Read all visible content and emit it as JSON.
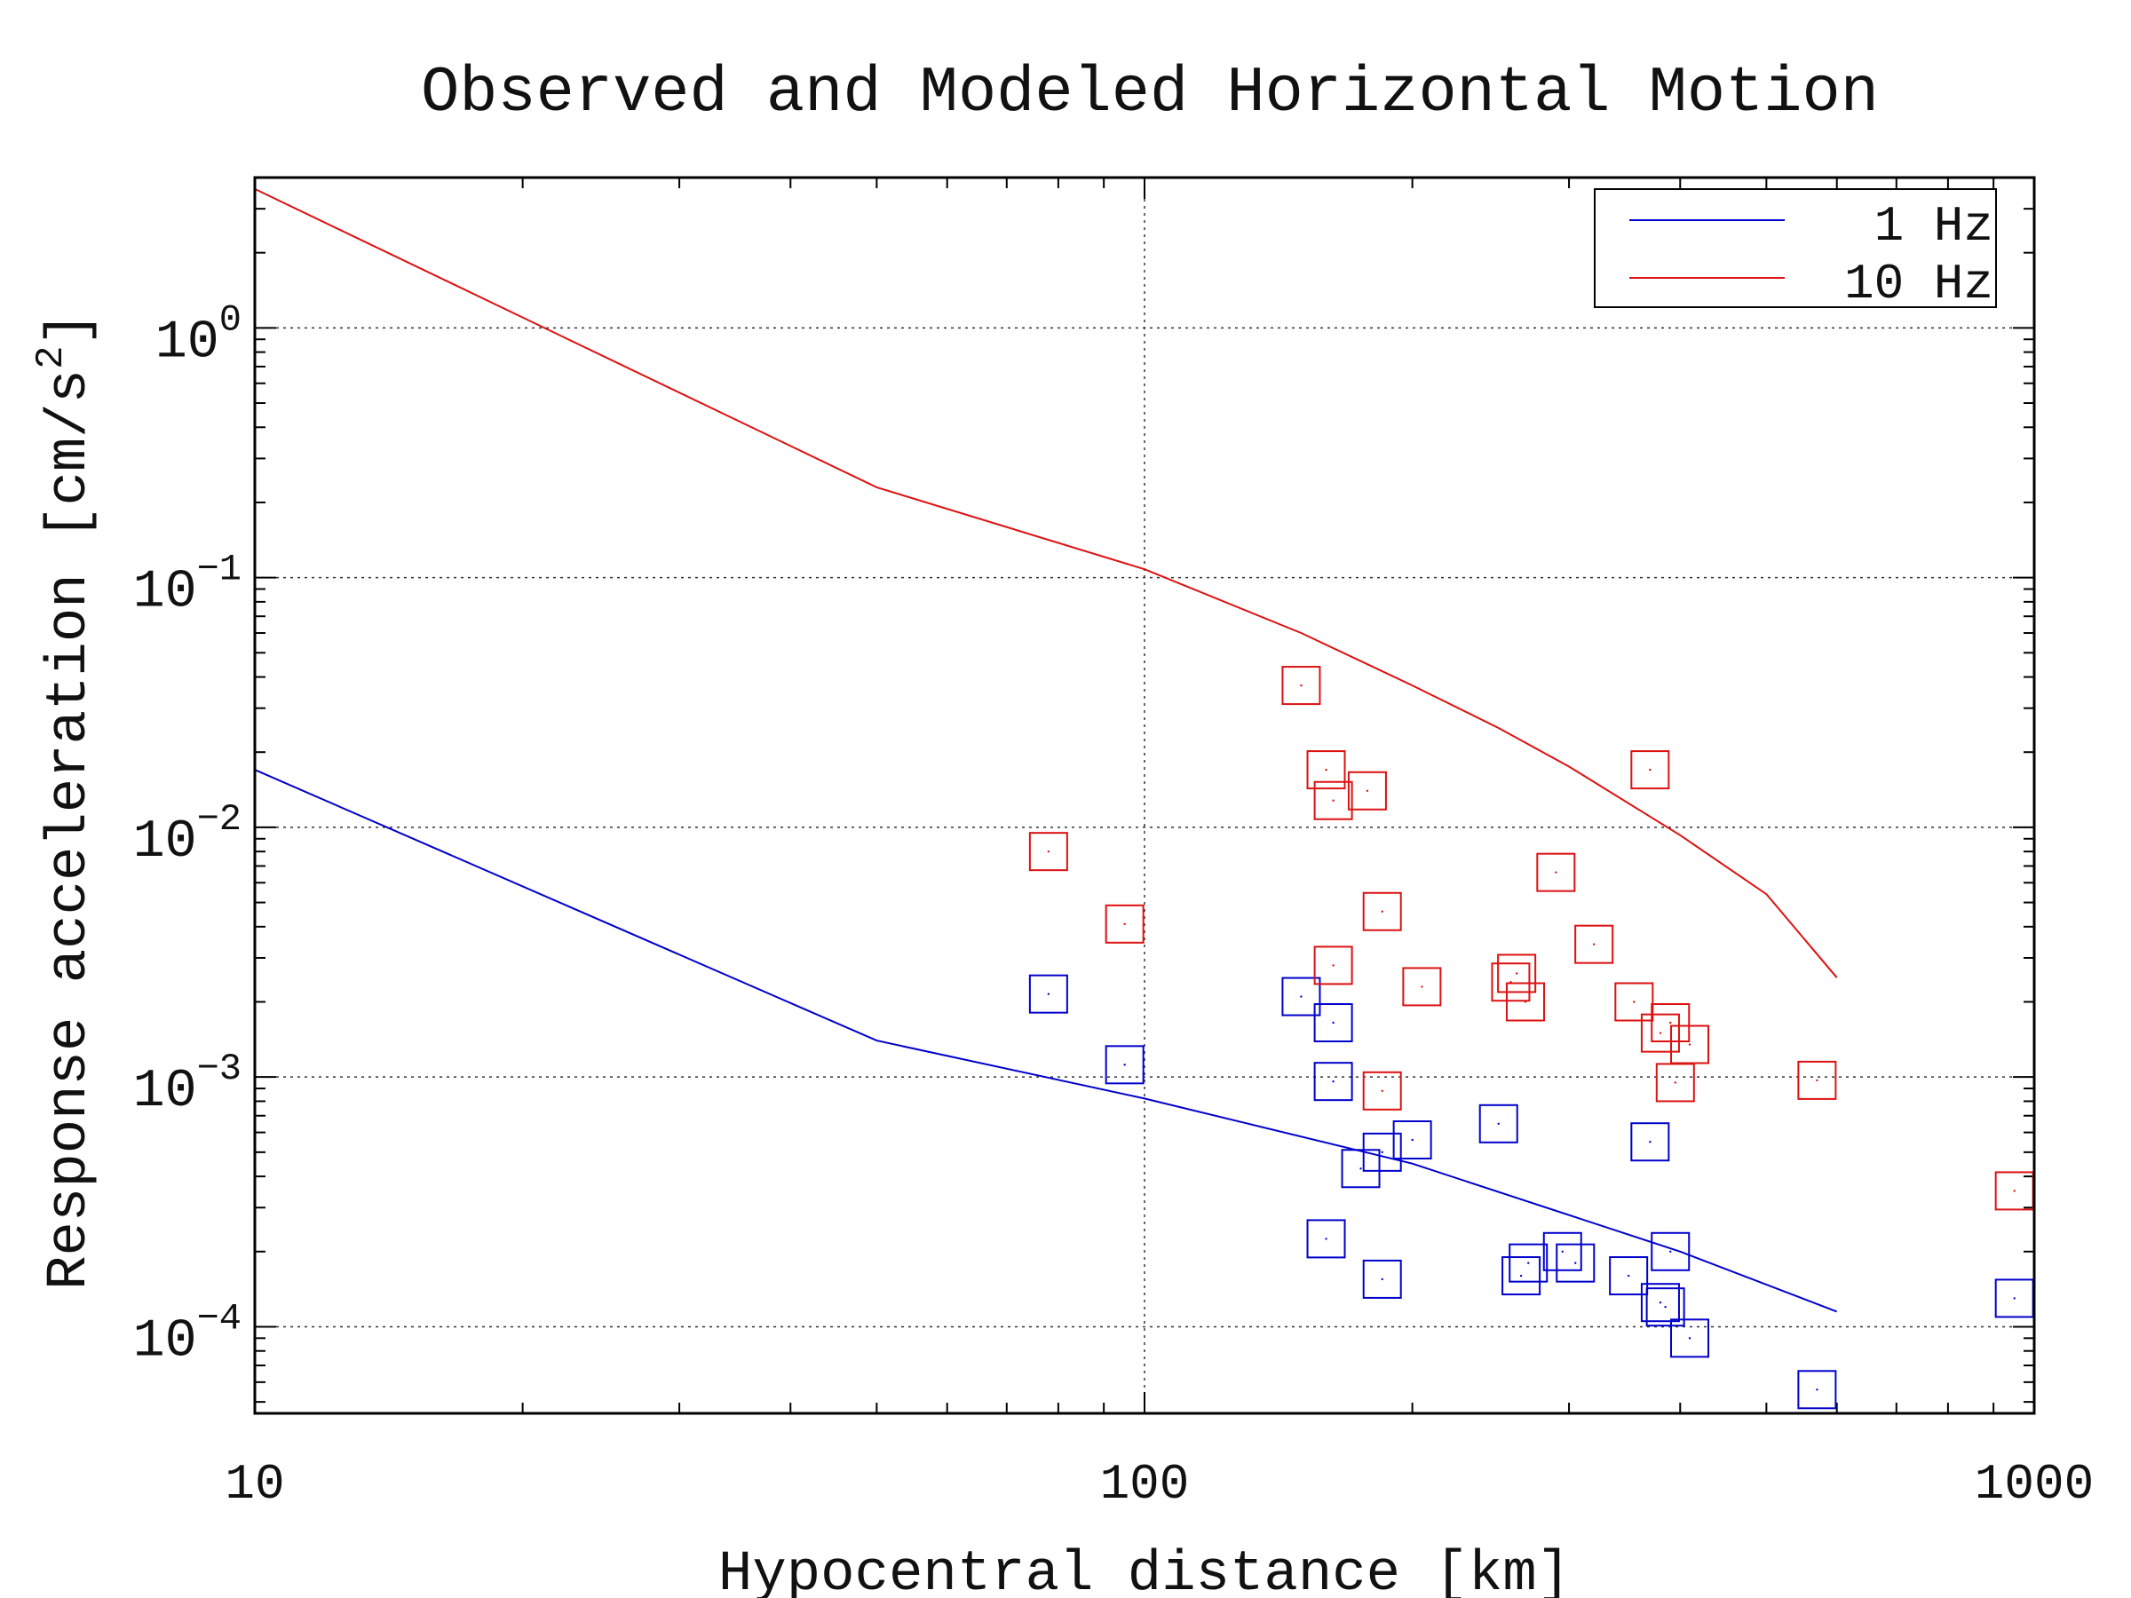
{
  "chart_data": {
    "type": "scatter",
    "title": "Observed and Modeled Horizontal Motion",
    "xlabel": "Hypocentral distance [km]",
    "ylabel": "Response acceleration [cm/s",
    "ylabel_superscript": "2",
    "ylabel_suffix": "]",
    "x_scale": "log",
    "y_scale": "log",
    "xlim": [
      10,
      1000
    ],
    "ylim": [
      4.5e-05,
      4.0
    ],
    "grid": "dotted at major ticks",
    "x_ticks": [
      {
        "value": 10,
        "label": "10"
      },
      {
        "value": 100,
        "label": "100"
      },
      {
        "value": 1000,
        "label": "1000"
      }
    ],
    "y_ticks": [
      {
        "value": 1,
        "base": "10",
        "exp": "0"
      },
      {
        "value": 0.1,
        "base": "10",
        "exp": "−1"
      },
      {
        "value": 0.01,
        "base": "10",
        "exp": "−2"
      },
      {
        "value": 0.001,
        "base": "10",
        "exp": "−3"
      },
      {
        "value": 0.0001,
        "base": "10",
        "exp": "−4"
      }
    ],
    "legend_position": "top-right",
    "series": [
      {
        "name": "1 Hz",
        "color": "#0000cc",
        "line": [
          [
            10,
            0.017
          ],
          [
            50,
            0.0014
          ],
          [
            100,
            0.00082
          ],
          [
            200,
            0.00045
          ],
          [
            400,
            0.0002
          ],
          [
            600,
            0.000115
          ]
        ],
        "points": [
          [
            78,
            0.00215
          ],
          [
            95,
            0.00112
          ],
          [
            150,
            0.0021
          ],
          [
            160,
            0.000225
          ],
          [
            163,
            0.00165
          ],
          [
            163,
            0.00096
          ],
          [
            175,
            0.00043
          ],
          [
            185,
            0.0005
          ],
          [
            185,
            0.000155
          ],
          [
            200,
            0.00056
          ],
          [
            250,
            0.00065
          ],
          [
            265,
            0.00016
          ],
          [
            270,
            0.00018
          ],
          [
            295,
            0.0002
          ],
          [
            305,
            0.00018
          ],
          [
            350,
            0.00016
          ],
          [
            370,
            0.00055
          ],
          [
            380,
            0.000125
          ],
          [
            385,
            0.00012
          ],
          [
            390,
            0.0002
          ],
          [
            410,
            9e-05
          ],
          [
            570,
            5.6e-05
          ],
          [
            950,
            0.00013
          ]
        ]
      },
      {
        "name": "10 Hz",
        "color": "#dd1111",
        "line": [
          [
            10,
            3.6
          ],
          [
            50,
            0.23
          ],
          [
            100,
            0.108
          ],
          [
            150,
            0.06
          ],
          [
            200,
            0.037
          ],
          [
            250,
            0.025
          ],
          [
            300,
            0.0175
          ],
          [
            400,
            0.0093
          ],
          [
            500,
            0.0054
          ],
          [
            600,
            0.0025
          ]
        ],
        "points": [
          [
            78,
            0.008
          ],
          [
            95,
            0.0041
          ],
          [
            150,
            0.037
          ],
          [
            160,
            0.017
          ],
          [
            163,
            0.0128
          ],
          [
            163,
            0.0028
          ],
          [
            178,
            0.014
          ],
          [
            185,
            0.0046
          ],
          [
            185,
            0.00088
          ],
          [
            205,
            0.0023
          ],
          [
            258,
            0.0024
          ],
          [
            262,
            0.0026
          ],
          [
            268,
            0.002
          ],
          [
            290,
            0.0066
          ],
          [
            320,
            0.0034
          ],
          [
            355,
            0.002
          ],
          [
            370,
            0.017
          ],
          [
            380,
            0.0015
          ],
          [
            390,
            0.00165
          ],
          [
            395,
            0.00095
          ],
          [
            410,
            0.00135
          ],
          [
            570,
            0.00097
          ],
          [
            950,
            0.00035
          ]
        ]
      }
    ]
  }
}
